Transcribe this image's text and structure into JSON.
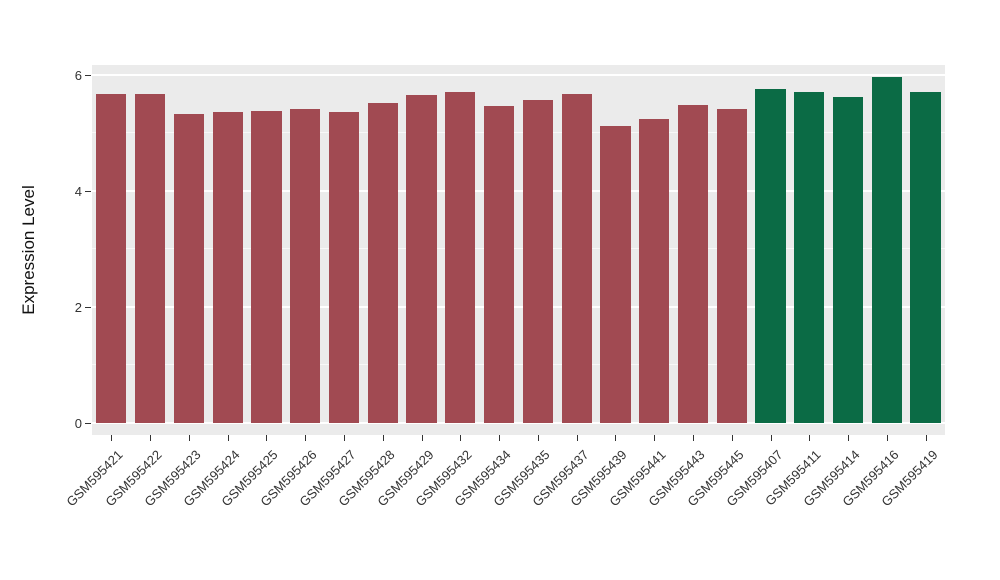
{
  "chart_data": {
    "type": "bar",
    "title": "",
    "xlabel": "",
    "ylabel": "Expression Level",
    "categories": [
      "GSM595421",
      "GSM595422",
      "GSM595423",
      "GSM595424",
      "GSM595425",
      "GSM595426",
      "GSM595427",
      "GSM595428",
      "GSM595429",
      "GSM595432",
      "GSM595434",
      "GSM595435",
      "GSM595437",
      "GSM595439",
      "GSM595441",
      "GSM595443",
      "GSM595445",
      "GSM595407",
      "GSM595411",
      "GSM595414",
      "GSM595416",
      "GSM595419"
    ],
    "values": [
      5.68,
      5.68,
      5.33,
      5.36,
      5.38,
      5.42,
      5.36,
      5.52,
      5.66,
      5.7,
      5.47,
      5.57,
      5.68,
      5.12,
      5.25,
      5.48,
      5.42,
      5.76,
      5.7,
      5.62,
      5.96,
      5.7
    ],
    "bar_colors": [
      "#A14A52",
      "#A14A52",
      "#A14A52",
      "#A14A52",
      "#A14A52",
      "#A14A52",
      "#A14A52",
      "#A14A52",
      "#A14A52",
      "#A14A52",
      "#A14A52",
      "#A14A52",
      "#A14A52",
      "#A14A52",
      "#A14A52",
      "#A14A52",
      "#A14A52",
      "#0B6B45",
      "#0B6B45",
      "#0B6B45",
      "#0B6B45",
      "#0B6B45"
    ],
    "group_colors": {
      "group1": "#A14A52",
      "group2": "#0B6B45"
    },
    "ylim": [
      0,
      6.35
    ],
    "yticks": [
      0,
      2,
      4,
      6
    ],
    "minor_yticks": [
      1,
      3,
      5
    ],
    "grid": true,
    "legend_position": "none",
    "panel_background": "#EBEBEB",
    "gridline_color": "#FFFFFF",
    "bar_width_fraction": 0.78
  }
}
